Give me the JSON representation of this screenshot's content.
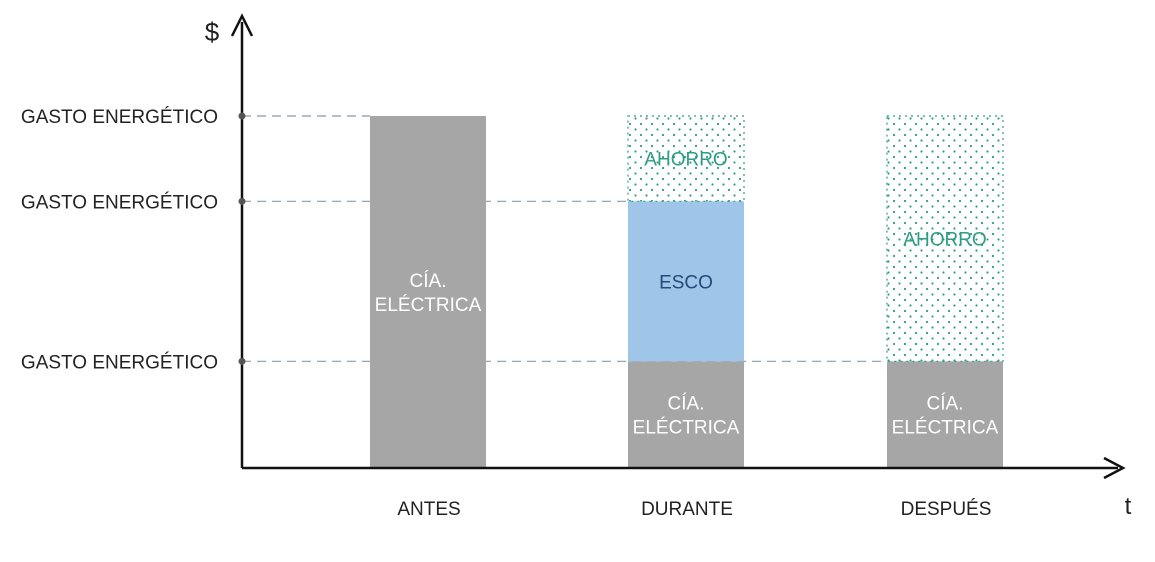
{
  "chart_data": {
    "type": "bar",
    "stacked": true,
    "y_axis_label": "$",
    "x_axis_label": "t",
    "y_tick_labels": [
      "GASTO ENERGÉTICO",
      "GASTO ENERGÉTICO",
      "GASTO ENERGÉTICO"
    ],
    "y_tick_values": [
      3.3,
      2.5,
      1.0
    ],
    "ylim": [
      0,
      3.8
    ],
    "grid": "dashed horizontal guide lines at each tick",
    "categories": [
      "ANTES",
      "DURANTE",
      "DESPUÉS"
    ],
    "series": [
      {
        "label_lines": [
          "CÍA.",
          "ELÉCTRICA"
        ],
        "values": [
          3.3,
          1.0,
          1.0
        ],
        "style": "solid",
        "color": "#a6a6a6",
        "text_color": "#ffffff"
      },
      {
        "label_lines": [
          "ESCO"
        ],
        "values": [
          0,
          1.5,
          0
        ],
        "style": "solid",
        "color": "#9fc5e8",
        "text_color": "#234a7a"
      },
      {
        "label_lines": [
          "AHORRO"
        ],
        "values": [
          0,
          0.8,
          2.3
        ],
        "style": "dotted",
        "color": "#2e9c84",
        "text_color": "#2e9c84"
      }
    ],
    "colors": {
      "axis": "#111111",
      "guide": "#8899aa",
      "text": "#222222"
    }
  }
}
